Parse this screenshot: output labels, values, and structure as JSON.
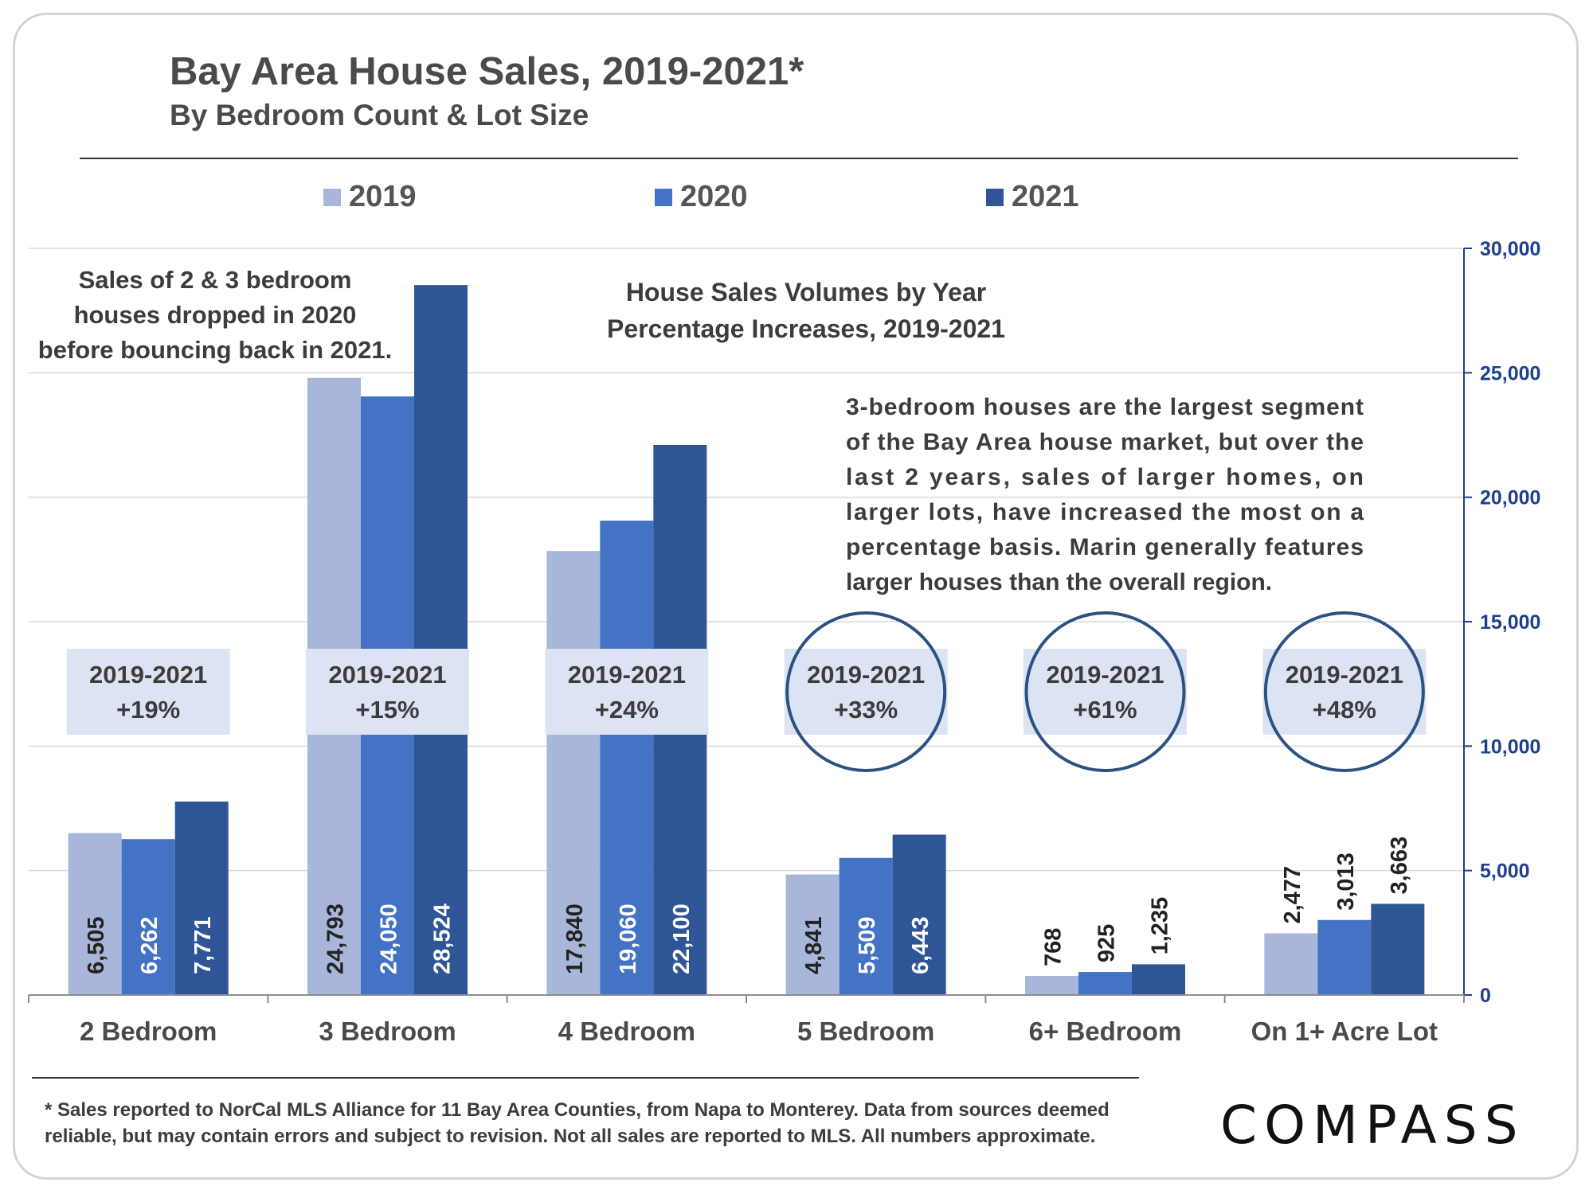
{
  "title": "Bay Area House Sales, 2019-2021*",
  "subtitle": "By Bedroom Count & Lot Size",
  "colors": {
    "2019": "#a8b6d9",
    "2020": "#4472c4",
    "2021": "#2f5597",
    "axis": "#1f3f8f",
    "circle": "#2c5282",
    "pct_box": "#dce3f2"
  },
  "chart_data": {
    "type": "bar",
    "title": "Bay Area House Sales, 2019-2021*",
    "subtitle": "By Bedroom Count & Lot Size",
    "categories": [
      "2 Bedroom",
      "3 Bedroom",
      "4 Bedroom",
      "5 Bedroom",
      "6+ Bedroom",
      "On 1+ Acre Lot"
    ],
    "series": [
      {
        "name": "2019",
        "values": [
          6505,
          24793,
          17840,
          4841,
          768,
          2477
        ]
      },
      {
        "name": "2020",
        "values": [
          6262,
          24050,
          19060,
          5509,
          925,
          3013
        ]
      },
      {
        "name": "2021",
        "values": [
          7771,
          28524,
          22100,
          6443,
          1235,
          3663
        ]
      }
    ],
    "data_labels": [
      [
        "6,505",
        "24,793",
        "17,840",
        "4,841",
        "768",
        "2,477"
      ],
      [
        "6,262",
        "24,050",
        "19,060",
        "5,509",
        "925",
        "3,013"
      ],
      [
        "7,771",
        "28,524",
        "22,100",
        "6,443",
        "1,235",
        "3,663"
      ]
    ],
    "ylim": [
      0,
      30000
    ],
    "yticks": [
      0,
      5000,
      10000,
      15000,
      20000,
      25000,
      30000
    ],
    "ytick_labels": [
      "0",
      "5,000",
      "10,000",
      "15,000",
      "20,000",
      "25,000",
      "30,000"
    ],
    "y_axis_side": "right",
    "grid": true,
    "legend_position": "top",
    "percent_labels": [
      {
        "period": "2019-2021",
        "change": "+19%",
        "circled": false
      },
      {
        "period": "2019-2021",
        "change": "+15%",
        "circled": false
      },
      {
        "period": "2019-2021",
        "change": "+24%",
        "circled": false
      },
      {
        "period": "2019-2021",
        "change": "+33%",
        "circled": true
      },
      {
        "period": "2019-2021",
        "change": "+61%",
        "circled": true
      },
      {
        "period": "2019-2021",
        "change": "+48%",
        "circled": true
      }
    ],
    "annotations": {
      "left_note": [
        "Sales of 2 & 3 bedroom",
        "houses dropped in 2020",
        "before bouncing back in 2021."
      ],
      "center_note": [
        "House Sales Volumes by Year",
        "Percentage Increases, 2019-2021"
      ],
      "right_note": [
        "3-bedroom houses are the largest segment",
        "of the Bay Area house market, but over the",
        "last 2 years, sales of larger homes, on",
        "larger lots, have increased the most on a",
        "percentage basis. Marin generally features",
        "larger houses than the overall region."
      ]
    }
  },
  "footnote": "* Sales reported to NorCal MLS Alliance for 11 Bay Area Counties, from Napa to Monterey. Data from sources deemed reliable, but may contain errors and subject to revision.  Not all sales are reported to MLS. All numbers approximate.",
  "logo": "COMPASS"
}
